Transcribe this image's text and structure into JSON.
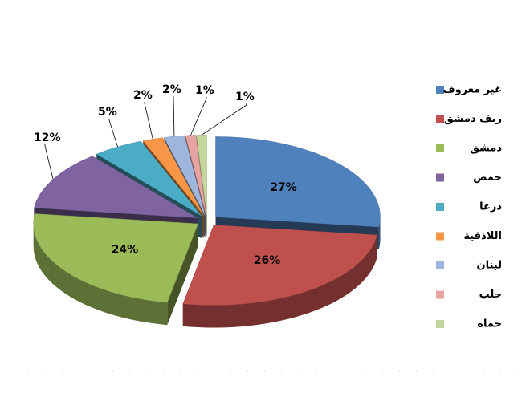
{
  "chart_data": {
    "type": "pie3d",
    "categories": [
      "غير معروف",
      "ريف دمشق",
      "دمشق",
      "حمص",
      "درعا",
      "اللاذقية",
      "لبنان",
      "حلب",
      "حماة"
    ],
    "values": [
      27,
      26,
      24,
      12,
      5,
      2,
      2,
      1,
      1
    ],
    "value_labels": [
      "27%",
      "26%",
      "24%",
      "12%",
      "5%",
      "2%",
      "2%",
      "1%",
      "1%"
    ],
    "colors": [
      "#4f81bd",
      "#c0504d",
      "#9bbb59",
      "#8064a2",
      "#4bacc6",
      "#f79646",
      "#9fb6dc",
      "#e6a3a1",
      "#c3d69b"
    ],
    "legend": "right"
  }
}
